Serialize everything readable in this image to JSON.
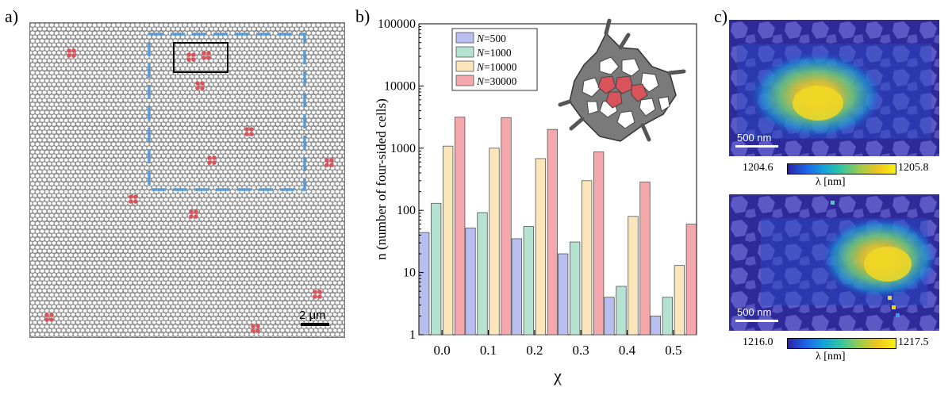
{
  "labels": {
    "a": "a)",
    "b": "b)",
    "c": "c)"
  },
  "panel_a": {
    "scalebar": "2 μm"
  },
  "chart_data": {
    "type": "bar",
    "categories": [
      "0.0",
      "0.1",
      "0.2",
      "0.3",
      "0.4",
      "0.5"
    ],
    "series": [
      {
        "name": "N=500",
        "values": [
          44,
          52,
          35,
          20,
          4,
          2
        ]
      },
      {
        "name": "N=1000",
        "values": [
          130,
          92,
          55,
          31,
          6,
          4
        ]
      },
      {
        "name": "N=10000",
        "values": [
          1080,
          1000,
          680,
          300,
          80,
          13
        ]
      },
      {
        "name": "N=30000",
        "values": [
          3150,
          3100,
          2000,
          870,
          285,
          60
        ]
      }
    ],
    "colors": [
      "#b8bff0",
      "#b6e2d2",
      "#fbe6bc",
      "#f5a8ac"
    ],
    "xlabel": "χ",
    "ylabel": "n (number of four-sided cells)",
    "yscale": "log",
    "ylim": [
      1,
      100000
    ],
    "yticks": [
      "1",
      "10",
      "100",
      "1000",
      "10000",
      "100000"
    ],
    "legend_position": "top-left",
    "legend": [
      {
        "prefix": "N",
        "suffix": "=500"
      },
      {
        "prefix": "N",
        "suffix": "=1000"
      },
      {
        "prefix": "N",
        "suffix": "=10000"
      },
      {
        "prefix": "N",
        "suffix": "=30000"
      }
    ]
  },
  "panel_c": {
    "top": {
      "scalebar": "500 nm",
      "cmin": "1204.6",
      "cmax": "1205.8",
      "unit": "λ [nm]"
    },
    "bottom": {
      "scalebar": "500 nm",
      "cmin": "1216.0",
      "cmax": "1217.5",
      "unit": "λ [nm]"
    }
  }
}
